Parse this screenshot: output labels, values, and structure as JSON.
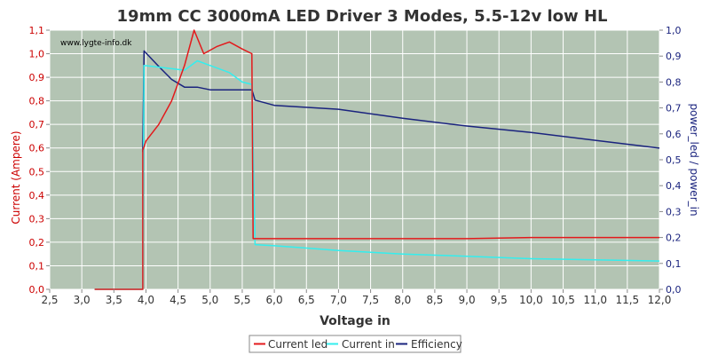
{
  "chart_data": {
    "type": "line",
    "title": "19mm CC 3000mA LED Driver 3 Modes, 5.5-12v low HL",
    "watermark": "www.lygte-info.dk",
    "xlabel": "Voltage in",
    "ylabel_left": "Current (Ampere)",
    "ylabel_right": "power_led / power_in",
    "xlim": [
      2.5,
      12.0
    ],
    "ylim_left": [
      0.0,
      1.1
    ],
    "ylim_right": [
      0.0,
      1.0
    ],
    "x_ticks": [
      "2,5",
      "3,0",
      "3,5",
      "4,0",
      "4,5",
      "5,0",
      "5,5",
      "6,0",
      "6,5",
      "7,0",
      "7,5",
      "8,0",
      "8,5",
      "9,0",
      "9,5",
      "10,0",
      "10,5",
      "11,0",
      "11,5",
      "12,0"
    ],
    "y_left_ticks": [
      "0,0",
      "0,1",
      "0,2",
      "0,3",
      "0,4",
      "0,5",
      "0,6",
      "0,7",
      "0,8",
      "0,9",
      "1,0",
      "1,1"
    ],
    "y_right_ticks": [
      "0,0",
      "0,1",
      "0,2",
      "0,3",
      "0,4",
      "0,5",
      "0,6",
      "0,7",
      "0,8",
      "0,9",
      "1,0"
    ],
    "grid": true,
    "legend_position": "bottom",
    "colors": {
      "plot_bg": "#b3c4b3",
      "grid": "#ffffff",
      "axis": "#888888",
      "left_axis_text": "#cc0000",
      "right_axis_text": "#1a237e"
    },
    "series": [
      {
        "name": "Current led",
        "axis": "left",
        "color": "#e31a1c",
        "x": [
          3.2,
          3.95,
          3.95,
          4.0,
          4.2,
          4.4,
          4.6,
          4.75,
          4.9,
          5.1,
          5.3,
          5.5,
          5.65,
          5.67,
          6.0,
          7.0,
          8.0,
          9.0,
          10.0,
          11.0,
          12.0
        ],
        "y": [
          0.0,
          0.0,
          0.59,
          0.63,
          0.7,
          0.8,
          0.95,
          1.1,
          1.0,
          1.03,
          1.05,
          1.02,
          1.0,
          0.215,
          0.215,
          0.215,
          0.215,
          0.215,
          0.22,
          0.22,
          0.22
        ]
      },
      {
        "name": "Current in",
        "axis": "left",
        "color": "#33eeee",
        "x": [
          3.2,
          3.95,
          3.97,
          4.3,
          4.6,
          4.8,
          5.0,
          5.3,
          5.5,
          5.65,
          5.7,
          6.0,
          6.5,
          7.0,
          8.0,
          9.0,
          10.0,
          11.0,
          12.0
        ],
        "y": [
          0.0,
          0.0,
          0.95,
          0.94,
          0.93,
          0.97,
          0.95,
          0.92,
          0.88,
          0.87,
          0.19,
          0.185,
          0.175,
          0.165,
          0.15,
          0.14,
          0.13,
          0.125,
          0.12
        ]
      },
      {
        "name": "Efficiency",
        "axis": "right",
        "color": "#1a237e",
        "x": [
          3.95,
          3.97,
          4.2,
          4.4,
          4.6,
          4.8,
          5.0,
          5.3,
          5.65,
          5.7,
          6.0,
          7.0,
          8.0,
          9.0,
          10.0,
          11.0,
          12.0
        ],
        "y": [
          0.53,
          0.92,
          0.86,
          0.81,
          0.78,
          0.78,
          0.77,
          0.77,
          0.77,
          0.73,
          0.71,
          0.695,
          0.66,
          0.63,
          0.605,
          0.575,
          0.545
        ]
      }
    ]
  }
}
